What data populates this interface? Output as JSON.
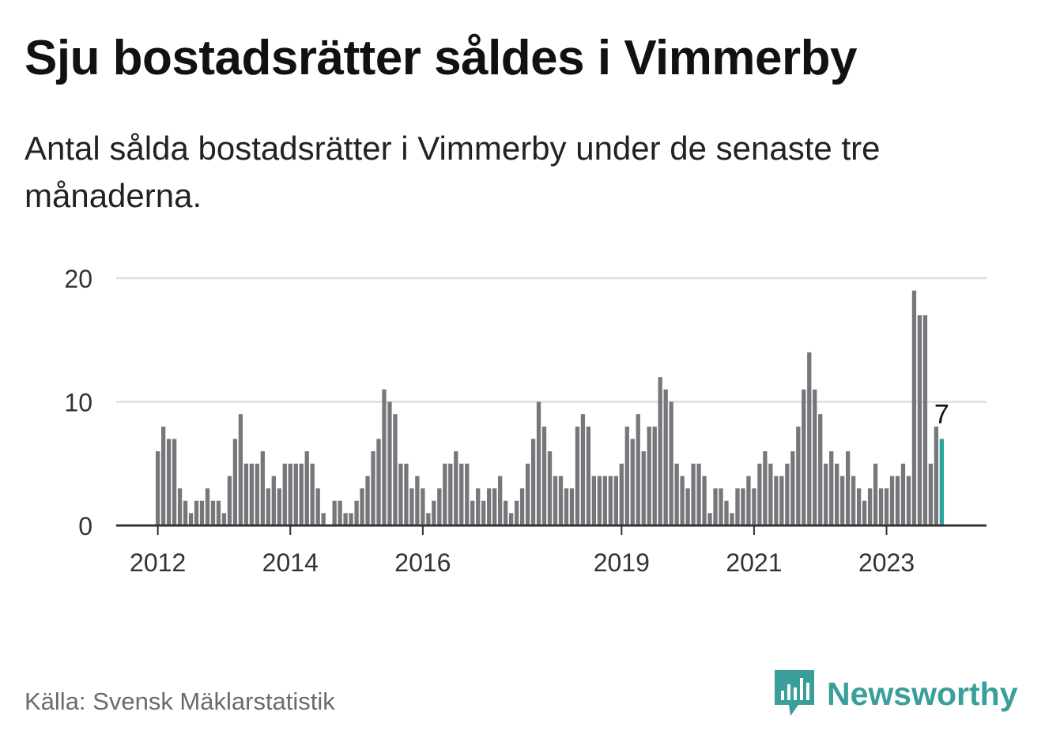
{
  "title": "Sju bostadsrätter såldes i Vimmerby",
  "subtitle": "Antal sålda bostadsrätter i Vimmerby under de senaste tre månaderna.",
  "source": "Källa: Svensk Mäklarstatistik",
  "brand": "Newsworthy",
  "colors": {
    "bar": "#77767b",
    "highlight": "#2aa39c",
    "grid": "#dddddd",
    "axis": "#333333",
    "brand": "#3a9e9a"
  },
  "chart_data": {
    "type": "bar",
    "title": "Sju bostadsrätter såldes i Vimmerby",
    "xlabel": "",
    "ylabel": "",
    "ylim": [
      0,
      20
    ],
    "yticks": [
      0,
      10,
      20
    ],
    "grid": true,
    "x_start": "2012-01",
    "frequency": "monthly",
    "xtick_labels": [
      {
        "label": "2012",
        "index": 0
      },
      {
        "label": "2014",
        "index": 24
      },
      {
        "label": "2016",
        "index": 48
      },
      {
        "label": "2019",
        "index": 84
      },
      {
        "label": "2021",
        "index": 108
      },
      {
        "label": "2023",
        "index": 132
      }
    ],
    "values": [
      6,
      8,
      7,
      7,
      3,
      2,
      1,
      2,
      2,
      3,
      2,
      2,
      1,
      4,
      7,
      9,
      5,
      5,
      5,
      6,
      3,
      4,
      3,
      5,
      5,
      5,
      5,
      6,
      5,
      3,
      1,
      0,
      2,
      2,
      1,
      1,
      2,
      3,
      4,
      6,
      7,
      11,
      10,
      9,
      5,
      5,
      3,
      4,
      3,
      1,
      2,
      3,
      5,
      5,
      6,
      5,
      5,
      2,
      3,
      2,
      3,
      3,
      4,
      2,
      1,
      2,
      3,
      5,
      7,
      10,
      8,
      6,
      4,
      4,
      3,
      3,
      8,
      9,
      8,
      4,
      4,
      4,
      4,
      4,
      5,
      8,
      7,
      9,
      6,
      8,
      8,
      12,
      11,
      10,
      5,
      4,
      3,
      5,
      5,
      4,
      1,
      3,
      3,
      2,
      1,
      3,
      3,
      4,
      3,
      5,
      6,
      5,
      4,
      4,
      5,
      6,
      8,
      11,
      14,
      11,
      9,
      5,
      6,
      5,
      4,
      6,
      4,
      3,
      2,
      3,
      5,
      3,
      3,
      4,
      4,
      5,
      4,
      19,
      17,
      17,
      5,
      8,
      7
    ],
    "highlight_index": 142,
    "highlight_label": "7"
  }
}
